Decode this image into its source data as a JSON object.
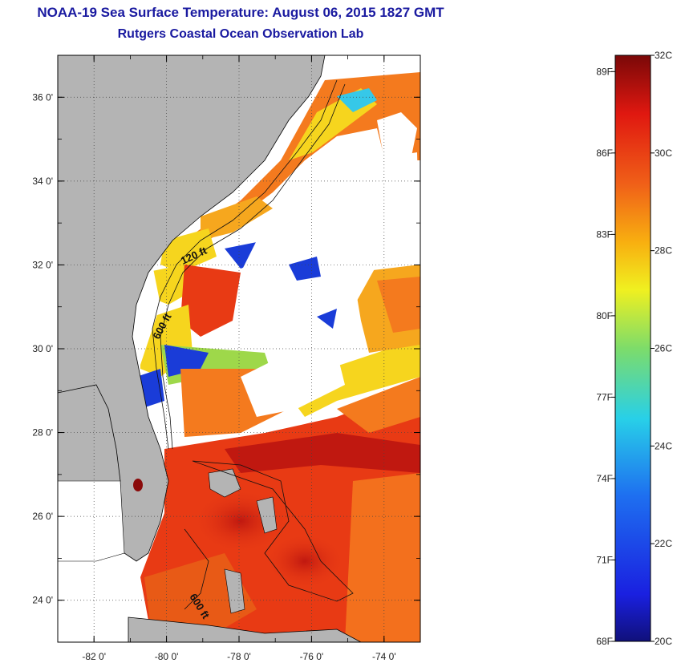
{
  "title_line1": "NOAA-19 Sea Surface Temperature:  August 06, 2015 1827 GMT",
  "title_line2": "Rutgers Coastal Ocean Observation Lab",
  "map": {
    "lon_range": [
      -83,
      -73
    ],
    "lat_range": [
      23,
      37
    ],
    "lat_ticks": [
      {
        "value": 36,
        "label": "36 0'"
      },
      {
        "value": 34,
        "label": "34 0'"
      },
      {
        "value": 32,
        "label": "32 0'"
      },
      {
        "value": 30,
        "label": "30 0'"
      },
      {
        "value": 28,
        "label": "28 0'"
      },
      {
        "value": 26,
        "label": "26 0'"
      },
      {
        "value": 24,
        "label": "24 0'"
      }
    ],
    "lon_ticks": [
      {
        "value": -82,
        "label": "-82 0'"
      },
      {
        "value": -80,
        "label": "-80 0'"
      },
      {
        "value": -78,
        "label": "-78 0'"
      },
      {
        "value": -76,
        "label": "-76 0'"
      },
      {
        "value": -74,
        "label": "-74 0'"
      }
    ],
    "isobath_labels": [
      "120 ft",
      "600 ft",
      "600 ft"
    ],
    "colors": {
      "land": "#b4b4b4",
      "cloud": "#ffffff",
      "warm": "#e83a14",
      "hot": "#c01810",
      "orange": "#f47a1e",
      "yellow": "#f6d51e",
      "green": "#9ed84a",
      "cyan": "#36c8e8",
      "blue": "#1a3cd8"
    }
  },
  "colorbar": {
    "range_c": [
      20,
      32
    ],
    "celsius_labels": [
      {
        "value": 32,
        "label": "32C"
      },
      {
        "value": 30,
        "label": "30C"
      },
      {
        "value": 28,
        "label": "28C"
      },
      {
        "value": 26,
        "label": "26C"
      },
      {
        "value": 24,
        "label": "24C"
      },
      {
        "value": 22,
        "label": "22C"
      },
      {
        "value": 20,
        "label": "20C"
      }
    ],
    "fahrenheit_labels": [
      {
        "value": 89,
        "label": "89F"
      },
      {
        "value": 86,
        "label": "86F"
      },
      {
        "value": 83,
        "label": "83F"
      },
      {
        "value": 80,
        "label": "80F"
      },
      {
        "value": 77,
        "label": "77F"
      },
      {
        "value": 74,
        "label": "74F"
      },
      {
        "value": 71,
        "label": "71F"
      },
      {
        "value": 68,
        "label": "68F"
      }
    ]
  }
}
